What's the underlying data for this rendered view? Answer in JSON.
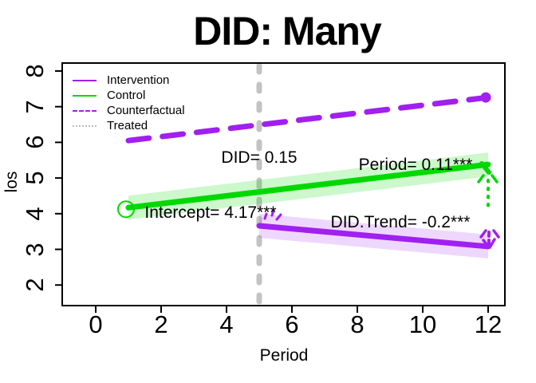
{
  "title": "DID: Many",
  "axes": {
    "x": {
      "label": "Period",
      "ticks": [
        0,
        2,
        4,
        6,
        8,
        10,
        12
      ]
    },
    "y": {
      "label": "los",
      "ticks": [
        2,
        3,
        4,
        5,
        6,
        7,
        8
      ]
    }
  },
  "legend": {
    "items": [
      {
        "label": "Intervention",
        "color": "#A020F0",
        "style": "solid"
      },
      {
        "label": "Control",
        "color": "#00D800",
        "style": "solid"
      },
      {
        "label": "Counterfactual",
        "color": "#A020F0",
        "style": "dashed"
      },
      {
        "label": "Treated",
        "color": "#BDBDBD",
        "style": "dotted"
      }
    ]
  },
  "annotations": {
    "did": "DID= 0.15",
    "period": "Period= 0.11***",
    "intercept": "Intercept= 4.17***",
    "trend": "DID.Trend= -0.2***"
  },
  "chart_data": {
    "type": "line",
    "title": "DID: Many",
    "xlabel": "Period",
    "ylabel": "los",
    "xlim": [
      -1,
      12.5
    ],
    "ylim": [
      1.9,
      8.2
    ],
    "grid": false,
    "legend_position": "top-left",
    "treatment_time": 5,
    "estimates": {
      "DID": 0.15,
      "Period": 0.11,
      "Intercept": 4.17,
      "DID.Trend": -0.2
    },
    "series": [
      {
        "name": "Treated",
        "kind": "vline",
        "x": 5,
        "color": "#C3C3C3",
        "style": "dashed"
      },
      {
        "name": "Control",
        "kind": "line",
        "x": [
          1,
          12
        ],
        "y": [
          4.17,
          5.38
        ],
        "color": "#00D800",
        "style": "solid",
        "band": true,
        "band_color": "rgba(0,220,0,0.20)",
        "start_marker": "open-circle"
      },
      {
        "name": "Intervention",
        "kind": "line",
        "x": [
          5,
          12
        ],
        "y": [
          3.66,
          3.08
        ],
        "color": "#A020F0",
        "style": "solid",
        "band": true,
        "band_color": "rgba(160,32,240,0.18)"
      },
      {
        "name": "Counterfactual",
        "kind": "line",
        "x": [
          1,
          12
        ],
        "y": [
          6.05,
          7.26
        ],
        "color": "#A020F0",
        "style": "dashed",
        "end_marker": "dot"
      }
    ]
  }
}
